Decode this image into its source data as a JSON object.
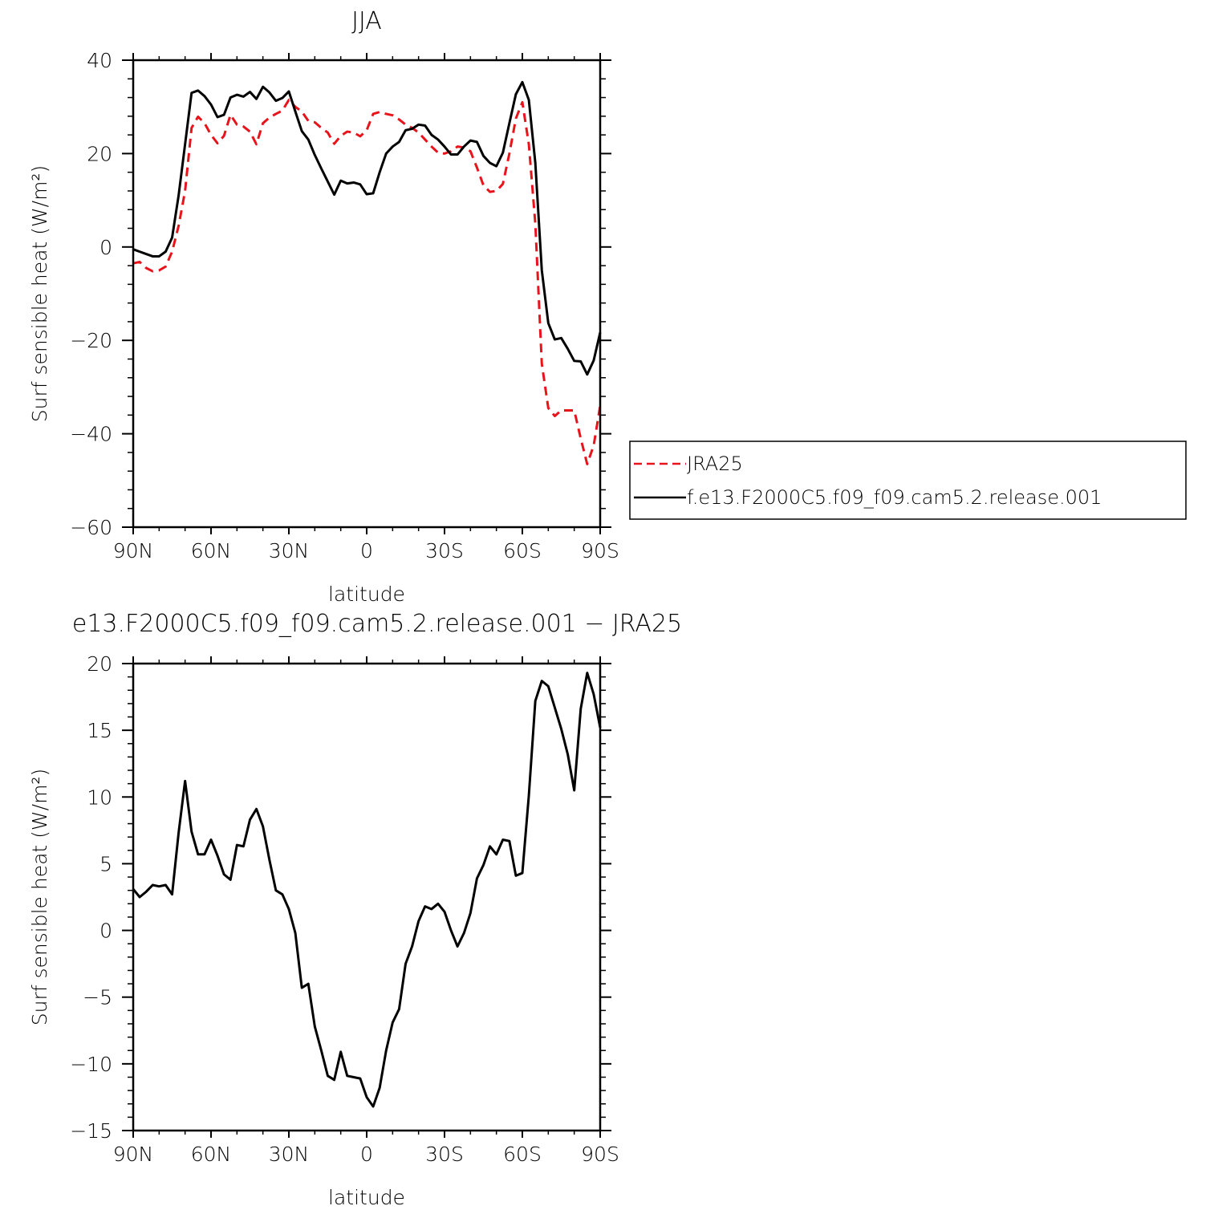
{
  "colors": {
    "jra": "#e8141c",
    "model": "#000000",
    "axes": "#000000"
  },
  "chart_data": [
    {
      "type": "line",
      "title": "JJA",
      "xlabel": "latitude",
      "ylabel": "Surf sensible heat (W/m²)",
      "xlim": [
        90,
        -90
      ],
      "ylim": [
        -60,
        40
      ],
      "xticks": [
        90,
        60,
        30,
        0,
        -30,
        -60,
        -90
      ],
      "xtick_labels": [
        "90N",
        "60N",
        "30N",
        "0",
        "30S",
        "60S",
        "90S"
      ],
      "yticks": [
        -60,
        -40,
        -20,
        0,
        20,
        40
      ],
      "ytick_labels": [
        "−60",
        "−40",
        "−20",
        "0",
        "20",
        "40"
      ],
      "legend_position": "right",
      "series": [
        {
          "name": "JRA25",
          "style": "dashed",
          "color": "#e8141c",
          "x": [
            90,
            87.5,
            85,
            82.5,
            80,
            77.5,
            75,
            72.5,
            70,
            67.5,
            65,
            62.5,
            60,
            57.5,
            55,
            52.5,
            50,
            47.5,
            45,
            42.5,
            40,
            37.5,
            35,
            32.5,
            30,
            27.5,
            25,
            22.5,
            20,
            17.5,
            15,
            12.5,
            10,
            7.5,
            5,
            2.5,
            0,
            -2.5,
            -5,
            -7.5,
            -10,
            -12.5,
            -15,
            -17.5,
            -20,
            -22.5,
            -25,
            -27.5,
            -30,
            -32.5,
            -35,
            -37.5,
            -40,
            -42.5,
            -45,
            -47.5,
            -50,
            -52.5,
            -55,
            -57.5,
            -60,
            -62.5,
            -65,
            -67.5,
            -70,
            -72.5,
            -75,
            -77.5,
            -80,
            -82.5,
            -85,
            -87.5,
            -90
          ],
          "y": [
            -3.5,
            -3.2,
            -4.5,
            -5.2,
            -5,
            -4.2,
            -1,
            4.5,
            12,
            25.5,
            27.9,
            26.5,
            24,
            22.2,
            23.8,
            28.3,
            26.2,
            25.8,
            24.7,
            22,
            26.5,
            27.7,
            28.5,
            29.2,
            31.5,
            30,
            29,
            27,
            26.7,
            25.5,
            24.5,
            22.1,
            23.8,
            24.7,
            24.5,
            23.7,
            25,
            28.5,
            28.9,
            28.5,
            28.2,
            27.3,
            26.2,
            25.5,
            24.5,
            23,
            21.5,
            20.2,
            20,
            20.5,
            21.5,
            21.3,
            20.5,
            17,
            13.2,
            11.8,
            12,
            13.5,
            20,
            27.5,
            31,
            22,
            5,
            -25,
            -34.5,
            -36.2,
            -35,
            -35,
            -35,
            -41,
            -46.5,
            -42.5,
            -34
          ]
        },
        {
          "name": "f.e13.F2000C5.f09_f09.cam5.2.release.001",
          "style": "solid",
          "color": "#000000",
          "x": [
            90,
            87.5,
            85,
            82.5,
            80,
            77.5,
            75,
            72.5,
            70,
            67.5,
            65,
            62.5,
            60,
            57.5,
            55,
            52.5,
            50,
            47.5,
            45,
            42.5,
            40,
            37.5,
            35,
            32.5,
            30,
            27.5,
            25,
            22.5,
            20,
            17.5,
            15,
            12.5,
            10,
            7.5,
            5,
            2.5,
            0,
            -2.5,
            -5,
            -7.5,
            -10,
            -12.5,
            -15,
            -17.5,
            -20,
            -22.5,
            -25,
            -27.5,
            -30,
            -32.5,
            -35,
            -37.5,
            -40,
            -42.5,
            -45,
            -47.5,
            -50,
            -52.5,
            -55,
            -57.5,
            -60,
            -62.5,
            -65,
            -67.5,
            -70,
            -72.5,
            -75,
            -77.5,
            -80,
            -82.5,
            -85,
            -87.5,
            -90
          ],
          "y": [
            -0.5,
            -1,
            -1.5,
            -2,
            -2,
            -1,
            2,
            11,
            22,
            33,
            33.5,
            32.3,
            30.5,
            27.8,
            28.3,
            32,
            32.6,
            32.2,
            33.2,
            31.7,
            34.3,
            33.1,
            31.3,
            31.9,
            33.3,
            29,
            24.8,
            23,
            19.7,
            16.8,
            14,
            11.2,
            14.2,
            13.6,
            13.8,
            13.4,
            11.3,
            11.5,
            16,
            20,
            21.5,
            22.5,
            25,
            25.3,
            26.2,
            26,
            24,
            23,
            21.5,
            19.8,
            19.8,
            21.5,
            22.8,
            22.5,
            19.5,
            18,
            17.3,
            20.2,
            26.5,
            32.7,
            35.3,
            31.5,
            18,
            -5,
            -16.3,
            -19.8,
            -19.5,
            -21.8,
            -24.4,
            -24.5,
            -27.3,
            -24.3,
            -18.3
          ]
        }
      ]
    },
    {
      "type": "line",
      "title": "e13.F2000C5.f09_f09.cam5.2.release.001 − JRA25",
      "xlabel": "latitude",
      "ylabel": "Surf sensible heat (W/m²)",
      "xlim": [
        90,
        -90
      ],
      "ylim": [
        -15,
        20
      ],
      "xticks": [
        90,
        60,
        30,
        0,
        -30,
        -60,
        -90
      ],
      "xtick_labels": [
        "90N",
        "60N",
        "30N",
        "0",
        "30S",
        "60S",
        "90S"
      ],
      "yticks": [
        -15,
        -10,
        -5,
        0,
        5,
        10,
        15,
        20
      ],
      "ytick_labels": [
        "−15",
        "−10",
        "−5",
        "0",
        "5",
        "10",
        "15",
        "20"
      ],
      "series": [
        {
          "style": "solid",
          "color": "#000000",
          "x": [
            90,
            87.5,
            85,
            82.5,
            80,
            77.5,
            75,
            72.5,
            70,
            67.5,
            65,
            62.5,
            60,
            57.5,
            55,
            52.5,
            50,
            47.5,
            45,
            42.5,
            40,
            37.5,
            35,
            32.5,
            30,
            27.5,
            25,
            22.5,
            20,
            17.5,
            15,
            12.5,
            10,
            7.5,
            5,
            2.5,
            0,
            -2.5,
            -5,
            -7.5,
            -10,
            -12.5,
            -15,
            -17.5,
            -20,
            -22.5,
            -25,
            -27.5,
            -30,
            -32.5,
            -35,
            -37.5,
            -40,
            -42.5,
            -45,
            -47.5,
            -50,
            -52.5,
            -55,
            -57.5,
            -60,
            -62.5,
            -65,
            -67.5,
            -70,
            -72.5,
            -75,
            -77.5,
            -80,
            -82.5,
            -85,
            -87.5,
            -90
          ],
          "y": [
            3.1,
            2.5,
            2.9,
            3.4,
            3.3,
            3.4,
            2.7,
            7.3,
            11.2,
            7.4,
            5.7,
            5.7,
            6.8,
            5.6,
            4.2,
            3.8,
            6.4,
            6.3,
            8.3,
            9.1,
            7.8,
            5.3,
            3,
            2.7,
            1.6,
            -0.2,
            -4.3,
            -4,
            -7.2,
            -9,
            -10.9,
            -11.2,
            -9.1,
            -10.9,
            -11,
            -11.1,
            -12.5,
            -13.2,
            -11.8,
            -9,
            -6.9,
            -5.9,
            -2.5,
            -1.2,
            0.7,
            1.8,
            1.6,
            2,
            1.4,
            0,
            -1.2,
            -0.2,
            1.3,
            3.9,
            4.9,
            6.3,
            5.7,
            6.8,
            6.7,
            4.1,
            4.3,
            10.1,
            17.2,
            18.7,
            18.3,
            16.7,
            15.1,
            13.2,
            10.5,
            16.6,
            19.3,
            17.7,
            15.2
          ]
        }
      ]
    }
  ],
  "legend": {
    "items": [
      {
        "label": "JRA25",
        "series": 0
      },
      {
        "label": "f.e13.F2000C5.f09_f09.cam5.2.release.001",
        "series": 1
      }
    ]
  }
}
